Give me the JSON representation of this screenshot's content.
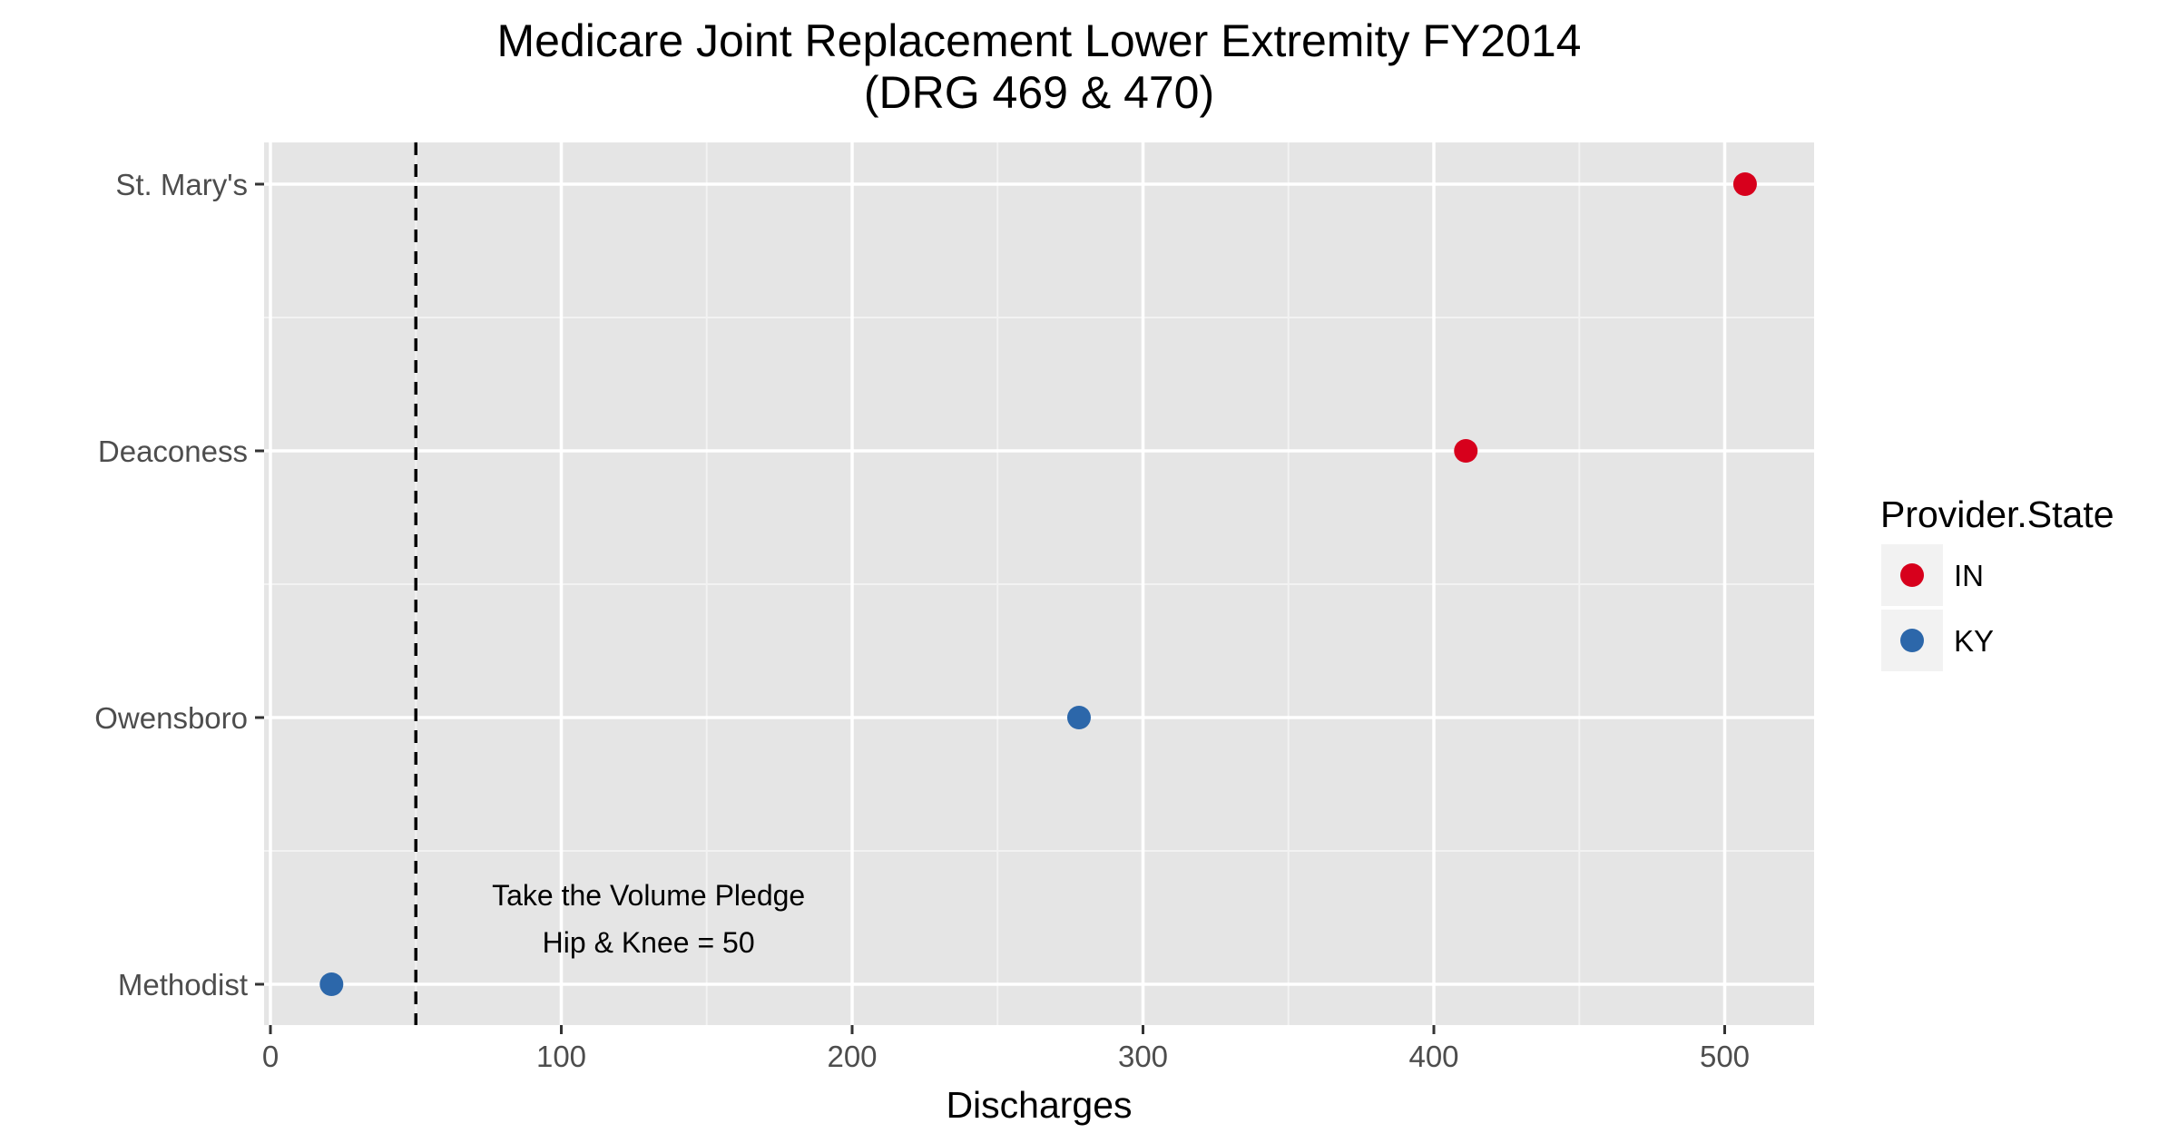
{
  "chart_data": {
    "type": "scatter",
    "title": [
      "Medicare Joint Replacement Lower Extremity FY2014",
      "(DRG 469 & 470)"
    ],
    "xlabel": "Discharges",
    "ylabel": "",
    "xlim": [
      -5,
      530
    ],
    "x_ticks": [
      0,
      100,
      200,
      300,
      400,
      500
    ],
    "categories": [
      "Methodist",
      "Owensboro",
      "Deaconess",
      "St. Mary's"
    ],
    "points": [
      {
        "provider": "St. Mary's",
        "discharges": 507,
        "state": "IN"
      },
      {
        "provider": "Deaconess",
        "discharges": 411,
        "state": "IN"
      },
      {
        "provider": "Owensboro",
        "discharges": 278,
        "state": "KY"
      },
      {
        "provider": "Methodist",
        "discharges": 21,
        "state": "KY"
      }
    ],
    "reference_line": {
      "x": 50,
      "style": "dashed"
    },
    "annotation": {
      "lines": [
        "Take the Volume Pledge",
        "Hip & Knee = 50"
      ],
      "x": 130,
      "y_between": [
        "Methodist",
        "Owensboro"
      ]
    },
    "legend": {
      "title": "Provider.State",
      "placement": "right",
      "items": [
        {
          "label": "IN",
          "color": "#d7001c"
        },
        {
          "label": "KY",
          "color": "#2c67aa"
        }
      ]
    },
    "grid": true,
    "panel_background": "#e5e5e5"
  }
}
